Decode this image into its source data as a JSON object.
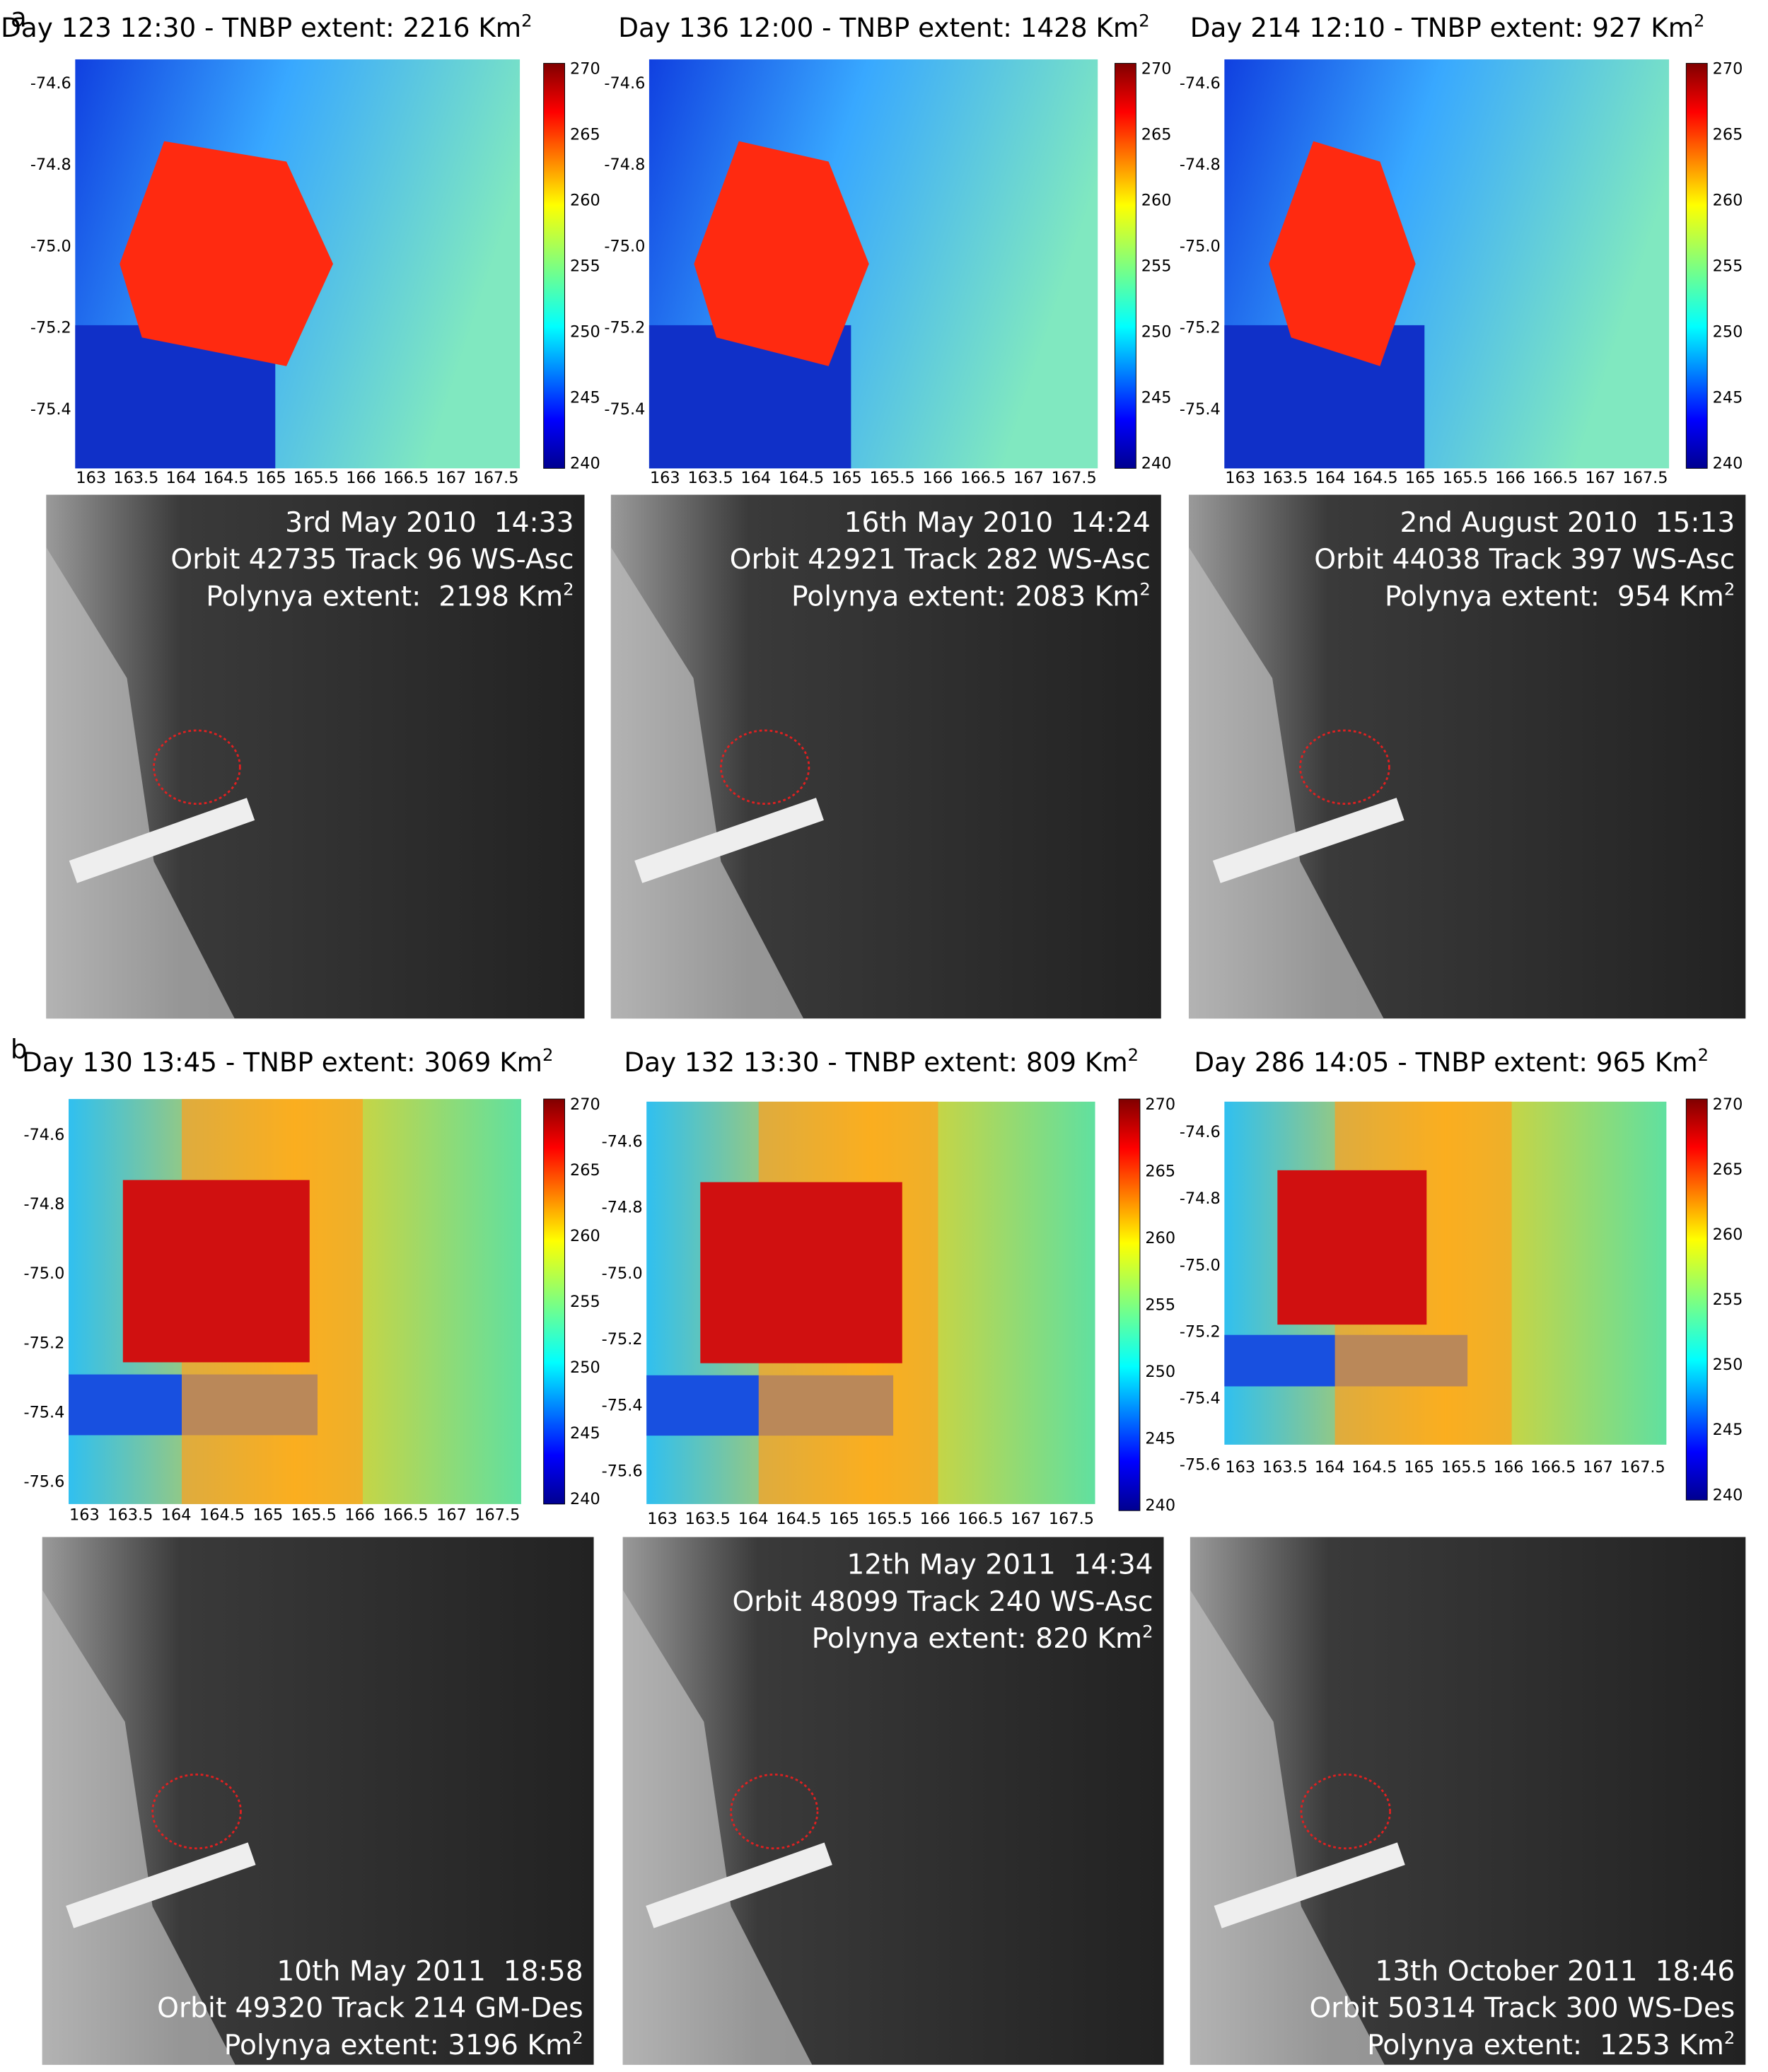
{
  "figure": {
    "panels": [
      {
        "label": "a",
        "maps": [
          {
            "title": "Day 123 12:30 - TNBP extent: 2216 Km",
            "title_sup": "2",
            "yticks": [
              "-74.6",
              "-74.8",
              "-75.0",
              "-75.2",
              "-75.4"
            ]
          },
          {
            "title": "Day 136 12:00 - TNBP extent: 1428 Km",
            "title_sup": "2",
            "yticks": [
              "-74.6",
              "-74.8",
              "-75.0",
              "-75.2",
              "-75.4"
            ]
          },
          {
            "title": "Day 214 12:10 - TNBP extent: 927 Km",
            "title_sup": "2",
            "yticks": [
              "-74.6",
              "-74.8",
              "-75.0",
              "-75.2",
              "-75.4"
            ]
          }
        ],
        "sar": [
          {
            "lines": [
              "3rd May 2010  14:33",
              "Orbit 42735 Track 96 WS-Asc",
              "Polynya extent:  2198 Km"
            ],
            "sup": "2"
          },
          {
            "lines": [
              "16th May 2010  14:24",
              "Orbit 42921 Track 282 WS-Asc",
              "Polynya extent: 2083 Km"
            ],
            "sup": "2"
          },
          {
            "lines": [
              "2nd August 2010  15:13",
              "Orbit 44038 Track 397 WS-Asc",
              "Polynya extent:  954 Km"
            ],
            "sup": "2"
          }
        ]
      },
      {
        "label": "b",
        "maps": [
          {
            "title": "Day 130 13:45 - TNBP extent: 3069 Km",
            "title_sup": "2",
            "yticks": [
              "-74.6",
              "-74.8",
              "-75.0",
              "-75.2",
              "-75.4",
              "-75.6"
            ]
          },
          {
            "title": "Day 132 13:30 - TNBP extent: 809 Km",
            "title_sup": "2",
            "yticks": [
              "-74.6",
              "-74.8",
              "-75.0",
              "-75.2",
              "-75.4",
              "-75.6"
            ]
          },
          {
            "title": "Day 286 14:05 - TNBP extent: 965 Km",
            "title_sup": "2",
            "yticks": [
              "-74.6",
              "-74.8",
              "-75.0",
              "-75.2",
              "-75.4",
              "-75.6"
            ]
          }
        ],
        "sar": [
          {
            "lines": [
              "10th May 2011  18:58",
              "Orbit 49320 Track 214 GM-Des",
              "Polynya extent: 3196 Km"
            ],
            "sup": "2"
          },
          {
            "lines": [
              "12th May 2011  14:34",
              "Orbit 48099 Track 240 WS-Asc",
              "Polynya extent: 820 Km"
            ],
            "sup": "2"
          },
          {
            "lines": [
              "13th October 2011  18:46",
              "Orbit 50314 Track 300 WS-Des",
              "Polynya extent:  1253 Km"
            ],
            "sup": "2"
          }
        ]
      }
    ],
    "xticks": [
      "163",
      "163.5",
      "164",
      "164.5",
      "165",
      "165.5",
      "166",
      "166.5",
      "167",
      "167.5"
    ],
    "colorbar_ticks": [
      "270",
      "265",
      "260",
      "255",
      "250",
      "245",
      "240"
    ]
  }
}
